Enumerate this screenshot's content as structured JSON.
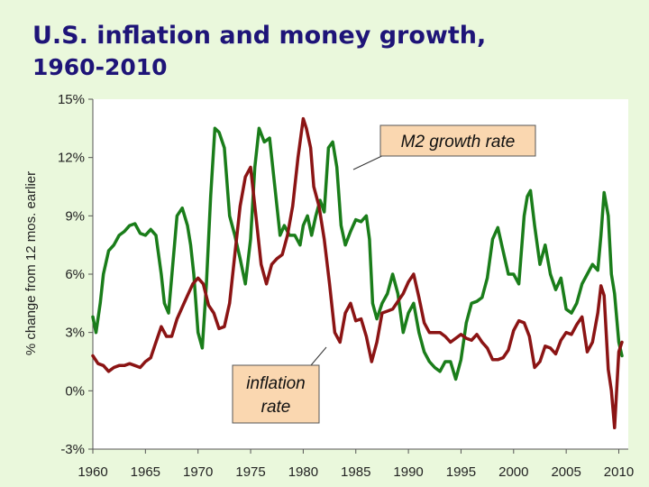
{
  "title": {
    "line1": "U.S. inflation and money growth,",
    "line2": "1960-2010"
  },
  "colors": {
    "background": "#eaf8dc",
    "plot_area": "#ffffff",
    "title": "#1e1478",
    "m2": "#1a7d1a",
    "inflation": "#8b1414",
    "callout_fill": "#fad7b0"
  },
  "chart_data": {
    "type": "line",
    "title": "U.S. inflation and money growth, 1960-2010",
    "xlabel": "",
    "ylabel": "% change from 12 mos. earlier",
    "xlim": [
      1960,
      2010.9
    ],
    "ylim": [
      -3,
      15
    ],
    "xticks": [
      1960,
      1965,
      1970,
      1975,
      1980,
      1985,
      1990,
      1995,
      2000,
      2005,
      2010
    ],
    "xtick_labels": [
      "1960",
      "1965",
      "1970",
      "1975",
      "1980",
      "1985",
      "1990",
      "1995",
      "2000",
      "2005",
      "2010"
    ],
    "yticks": [
      -3,
      0,
      3,
      6,
      9,
      12,
      15
    ],
    "ytick_labels": [
      "-3%",
      "0%",
      "3%",
      "6%",
      "9%",
      "12%",
      "15%"
    ],
    "grid": false,
    "annotations": [
      {
        "text": "M2 growth rate",
        "series": "M2 growth rate"
      },
      {
        "text": "inflation rate",
        "series": "inflation rate"
      }
    ],
    "series": [
      {
        "name": "M2 growth rate",
        "color": "#1a7d1a",
        "x": [
          1960.0,
          1960.3,
          1960.7,
          1961.0,
          1961.5,
          1962.0,
          1962.5,
          1963.0,
          1963.5,
          1964.0,
          1964.5,
          1965.0,
          1965.5,
          1966.0,
          1966.5,
          1966.8,
          1967.2,
          1967.6,
          1968.0,
          1968.5,
          1969.0,
          1969.3,
          1969.6,
          1970.0,
          1970.4,
          1970.8,
          1971.2,
          1971.6,
          1972.0,
          1972.5,
          1973.0,
          1973.5,
          1974.0,
          1974.5,
          1975.0,
          1975.4,
          1975.8,
          1976.3,
          1976.8,
          1977.3,
          1977.8,
          1978.2,
          1978.7,
          1979.2,
          1979.7,
          1980.0,
          1980.4,
          1980.8,
          1981.2,
          1981.6,
          1982.0,
          1982.4,
          1982.8,
          1983.2,
          1983.6,
          1984.0,
          1984.5,
          1985.0,
          1985.5,
          1986.0,
          1986.3,
          1986.6,
          1987.0,
          1987.5,
          1988.0,
          1988.5,
          1989.0,
          1989.5,
          1990.0,
          1990.5,
          1991.0,
          1991.5,
          1992.0,
          1992.5,
          1993.0,
          1993.5,
          1994.0,
          1994.5,
          1995.0,
          1995.5,
          1996.0,
          1996.5,
          1997.0,
          1997.5,
          1998.0,
          1998.5,
          1999.0,
          1999.5,
          2000.0,
          2000.5,
          2001.0,
          2001.3,
          2001.6,
          2002.0,
          2002.5,
          2003.0,
          2003.5,
          2004.0,
          2004.5,
          2005.0,
          2005.5,
          2006.0,
          2006.5,
          2007.0,
          2007.5,
          2008.0,
          2008.3,
          2008.6,
          2009.0,
          2009.3,
          2009.6,
          2010.0,
          2010.3
        ],
        "values": [
          3.8,
          3.0,
          4.5,
          6.0,
          7.2,
          7.5,
          8.0,
          8.2,
          8.5,
          8.6,
          8.1,
          8.0,
          8.3,
          8.0,
          6.0,
          4.5,
          4.0,
          6.5,
          9.0,
          9.4,
          8.5,
          7.5,
          6.0,
          3.0,
          2.2,
          5.5,
          10.0,
          13.5,
          13.3,
          12.5,
          9.0,
          8.0,
          6.8,
          5.5,
          7.8,
          11.5,
          13.5,
          12.8,
          13.0,
          10.5,
          8.0,
          8.5,
          8.0,
          8.0,
          7.5,
          8.5,
          9.0,
          8.0,
          9.0,
          9.8,
          9.2,
          12.5,
          12.8,
          11.5,
          8.5,
          7.5,
          8.2,
          8.8,
          8.7,
          9.0,
          7.8,
          4.5,
          3.7,
          4.5,
          5.0,
          6.0,
          5.0,
          3.0,
          4.0,
          4.5,
          3.0,
          2.0,
          1.5,
          1.2,
          1.0,
          1.5,
          1.5,
          0.6,
          1.6,
          3.5,
          4.5,
          4.6,
          4.8,
          5.8,
          7.8,
          8.4,
          7.2,
          6.0,
          6.0,
          5.5,
          9.0,
          10.0,
          10.3,
          8.5,
          6.5,
          7.5,
          6.0,
          5.2,
          5.8,
          4.2,
          4.0,
          4.5,
          5.5,
          6.0,
          6.5,
          6.2,
          8.0,
          10.2,
          9.0,
          6.0,
          5.0,
          2.5,
          1.8
        ]
      },
      {
        "name": "inflation rate",
        "color": "#8b1414",
        "x": [
          1960.0,
          1960.5,
          1961.0,
          1961.5,
          1962.0,
          1962.5,
          1963.0,
          1963.5,
          1964.0,
          1964.5,
          1965.0,
          1965.5,
          1966.0,
          1966.5,
          1967.0,
          1967.5,
          1968.0,
          1968.5,
          1969.0,
          1969.5,
          1970.0,
          1970.5,
          1971.0,
          1971.5,
          1972.0,
          1972.5,
          1973.0,
          1973.5,
          1974.0,
          1974.5,
          1975.0,
          1975.5,
          1976.0,
          1976.5,
          1977.0,
          1977.5,
          1978.0,
          1978.5,
          1979.0,
          1979.5,
          1980.0,
          1980.3,
          1980.7,
          1981.0,
          1981.5,
          1982.0,
          1982.5,
          1983.0,
          1983.5,
          1984.0,
          1984.5,
          1985.0,
          1985.5,
          1986.0,
          1986.5,
          1987.0,
          1987.5,
          1988.0,
          1988.5,
          1989.0,
          1989.5,
          1990.0,
          1990.5,
          1991.0,
          1991.5,
          1992.0,
          1992.5,
          1993.0,
          1993.5,
          1994.0,
          1994.5,
          1995.0,
          1995.5,
          1996.0,
          1996.5,
          1997.0,
          1997.5,
          1998.0,
          1998.5,
          1999.0,
          1999.5,
          2000.0,
          2000.5,
          2001.0,
          2001.5,
          2002.0,
          2002.5,
          2003.0,
          2003.5,
          2004.0,
          2004.5,
          2005.0,
          2005.5,
          2006.0,
          2006.5,
          2007.0,
          2007.5,
          2008.0,
          2008.3,
          2008.6,
          2009.0,
          2009.3,
          2009.6,
          2010.0,
          2010.3
        ],
        "values": [
          1.8,
          1.4,
          1.3,
          1.0,
          1.2,
          1.3,
          1.3,
          1.4,
          1.3,
          1.2,
          1.5,
          1.7,
          2.5,
          3.3,
          2.8,
          2.8,
          3.7,
          4.3,
          4.9,
          5.5,
          5.8,
          5.5,
          4.4,
          4.0,
          3.2,
          3.3,
          4.5,
          7.0,
          9.5,
          11.0,
          11.5,
          9.0,
          6.5,
          5.5,
          6.5,
          6.8,
          7.0,
          8.0,
          9.5,
          12.0,
          14.0,
          13.5,
          12.5,
          10.5,
          9.5,
          7.8,
          5.5,
          3.0,
          2.5,
          4.0,
          4.5,
          3.6,
          3.7,
          2.8,
          1.5,
          2.5,
          4.0,
          4.1,
          4.2,
          4.6,
          5.0,
          5.6,
          6.0,
          4.8,
          3.5,
          3.0,
          3.0,
          3.0,
          2.8,
          2.5,
          2.7,
          2.9,
          2.7,
          2.6,
          2.9,
          2.5,
          2.2,
          1.6,
          1.6,
          1.7,
          2.1,
          3.1,
          3.6,
          3.5,
          2.8,
          1.2,
          1.5,
          2.3,
          2.2,
          1.9,
          2.6,
          3.0,
          2.9,
          3.4,
          3.8,
          2.0,
          2.5,
          4.0,
          5.4,
          4.9,
          1.1,
          0.0,
          -1.9,
          2.0,
          2.5
        ]
      }
    ]
  }
}
